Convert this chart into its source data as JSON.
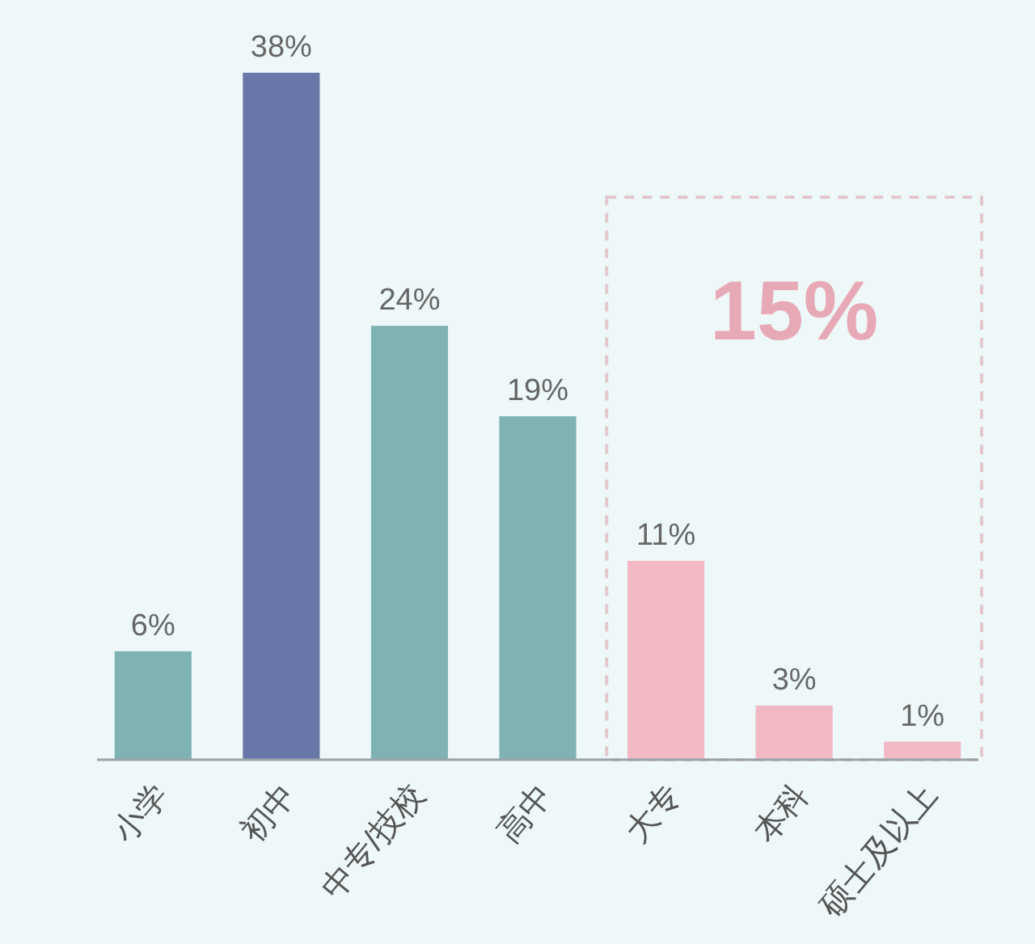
{
  "chart_data": {
    "type": "bar",
    "categories": [
      "小学",
      "初中",
      "中专/技校",
      "高中",
      "大专",
      "本科",
      "硕士及以上"
    ],
    "values": [
      6,
      38,
      24,
      19,
      11,
      3,
      1
    ],
    "value_labels": [
      "6%",
      "38%",
      "24%",
      "19%",
      "11%",
      "3%",
      "1%"
    ],
    "colors": [
      "#7fb3b3",
      "#6977a8",
      "#7fb3b3",
      "#7fb3b3",
      "#f2b9c5",
      "#f2b9c5",
      "#f2b9c5"
    ],
    "annotations": [
      "15%"
    ]
  }
}
